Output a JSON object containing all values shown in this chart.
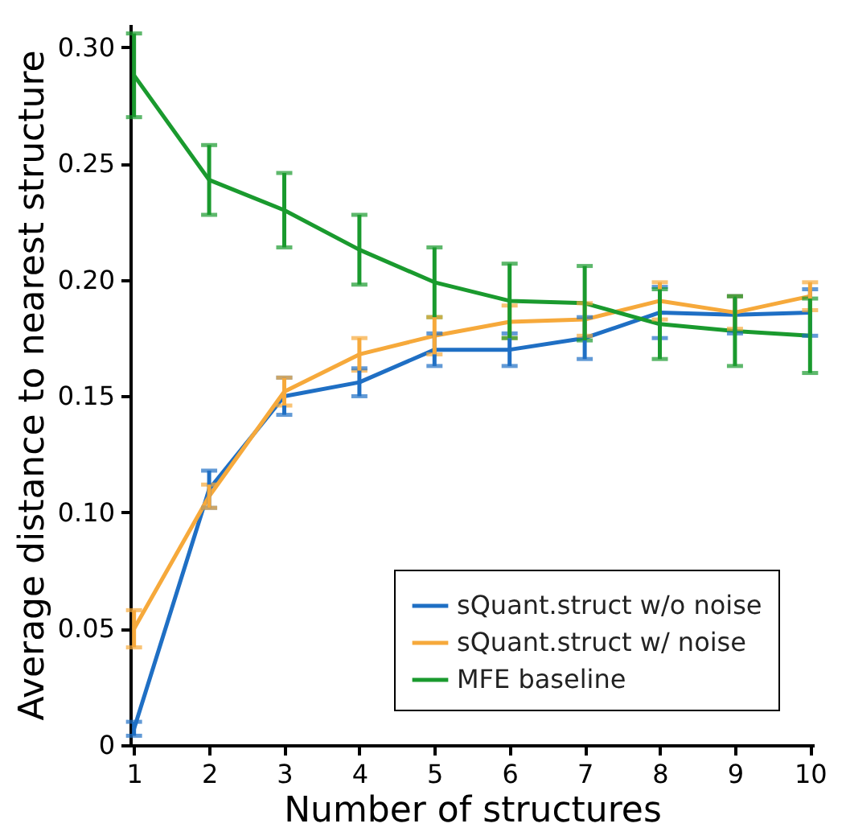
{
  "chart_data": {
    "type": "line",
    "xlabel": "Number of structures",
    "ylabel": "Average distance to nearest structure",
    "x": [
      1,
      2,
      3,
      4,
      5,
      6,
      7,
      8,
      9,
      10
    ],
    "series": [
      {
        "name": "sQuant.struct w/o noise",
        "color": "#1f6fc4",
        "values": [
          0.007,
          0.11,
          0.15,
          0.156,
          0.17,
          0.17,
          0.175,
          0.186,
          0.185,
          0.186
        ],
        "errors": [
          0.003,
          0.008,
          0.008,
          0.006,
          0.007,
          0.007,
          0.009,
          0.011,
          0.008,
          0.01
        ]
      },
      {
        "name": "sQuant.struct w/ noise",
        "color": "#f6a93b",
        "values": [
          0.05,
          0.107,
          0.152,
          0.168,
          0.176,
          0.182,
          0.183,
          0.191,
          0.186,
          0.193
        ],
        "errors": [
          0.008,
          0.005,
          0.006,
          0.007,
          0.008,
          0.007,
          0.007,
          0.008,
          0.007,
          0.006
        ]
      },
      {
        "name": "MFE baseline",
        "color": "#1a9a2e",
        "values": [
          0.288,
          0.243,
          0.23,
          0.213,
          0.199,
          0.191,
          0.19,
          0.181,
          0.178,
          0.176
        ],
        "errors": [
          0.018,
          0.015,
          0.016,
          0.015,
          0.015,
          0.016,
          0.016,
          0.015,
          0.015,
          0.016
        ]
      }
    ],
    "xlim": [
      0.95,
      10.05
    ],
    "xticks": [
      1,
      2,
      3,
      4,
      5,
      6,
      7,
      8,
      9,
      10
    ],
    "ylim": [
      0,
      0.31
    ],
    "yticks": [
      0,
      {
        "value": 0.05,
        "label": "0.05"
      },
      {
        "value": 0.1,
        "label": "0.10"
      },
      {
        "value": 0.15,
        "label": "0.15"
      },
      {
        "value": 0.2,
        "label": "0.20"
      },
      {
        "value": 0.25,
        "label": "0.25"
      },
      {
        "value": 0.3,
        "label": "0.30"
      }
    ],
    "grid": false,
    "legend": "bottom right"
  }
}
